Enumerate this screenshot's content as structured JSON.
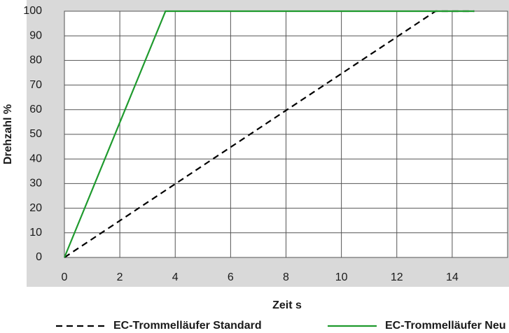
{
  "chart_data": {
    "type": "line",
    "xlabel": "Zeit s",
    "ylabel": "Drehzahl %",
    "xlim": [
      0,
      16
    ],
    "xticks": [
      0,
      2,
      4,
      6,
      8,
      10,
      12,
      14
    ],
    "ylim": [
      0,
      100
    ],
    "yticks": [
      0,
      10,
      20,
      30,
      40,
      50,
      60,
      70,
      80,
      90,
      100
    ],
    "grid": true,
    "legend": "bottom",
    "series": [
      {
        "name": "EC-Trommelläufer Standard",
        "color": "#000000",
        "style": "dashed",
        "x": [
          0,
          13.4,
          14.8
        ],
        "values": [
          0,
          100,
          100
        ]
      },
      {
        "name": "EC-Trommelläufer Neu",
        "color": "#1f9a2e",
        "style": "solid",
        "x": [
          0,
          3.65,
          14.8
        ],
        "values": [
          0,
          100,
          100
        ]
      }
    ]
  }
}
